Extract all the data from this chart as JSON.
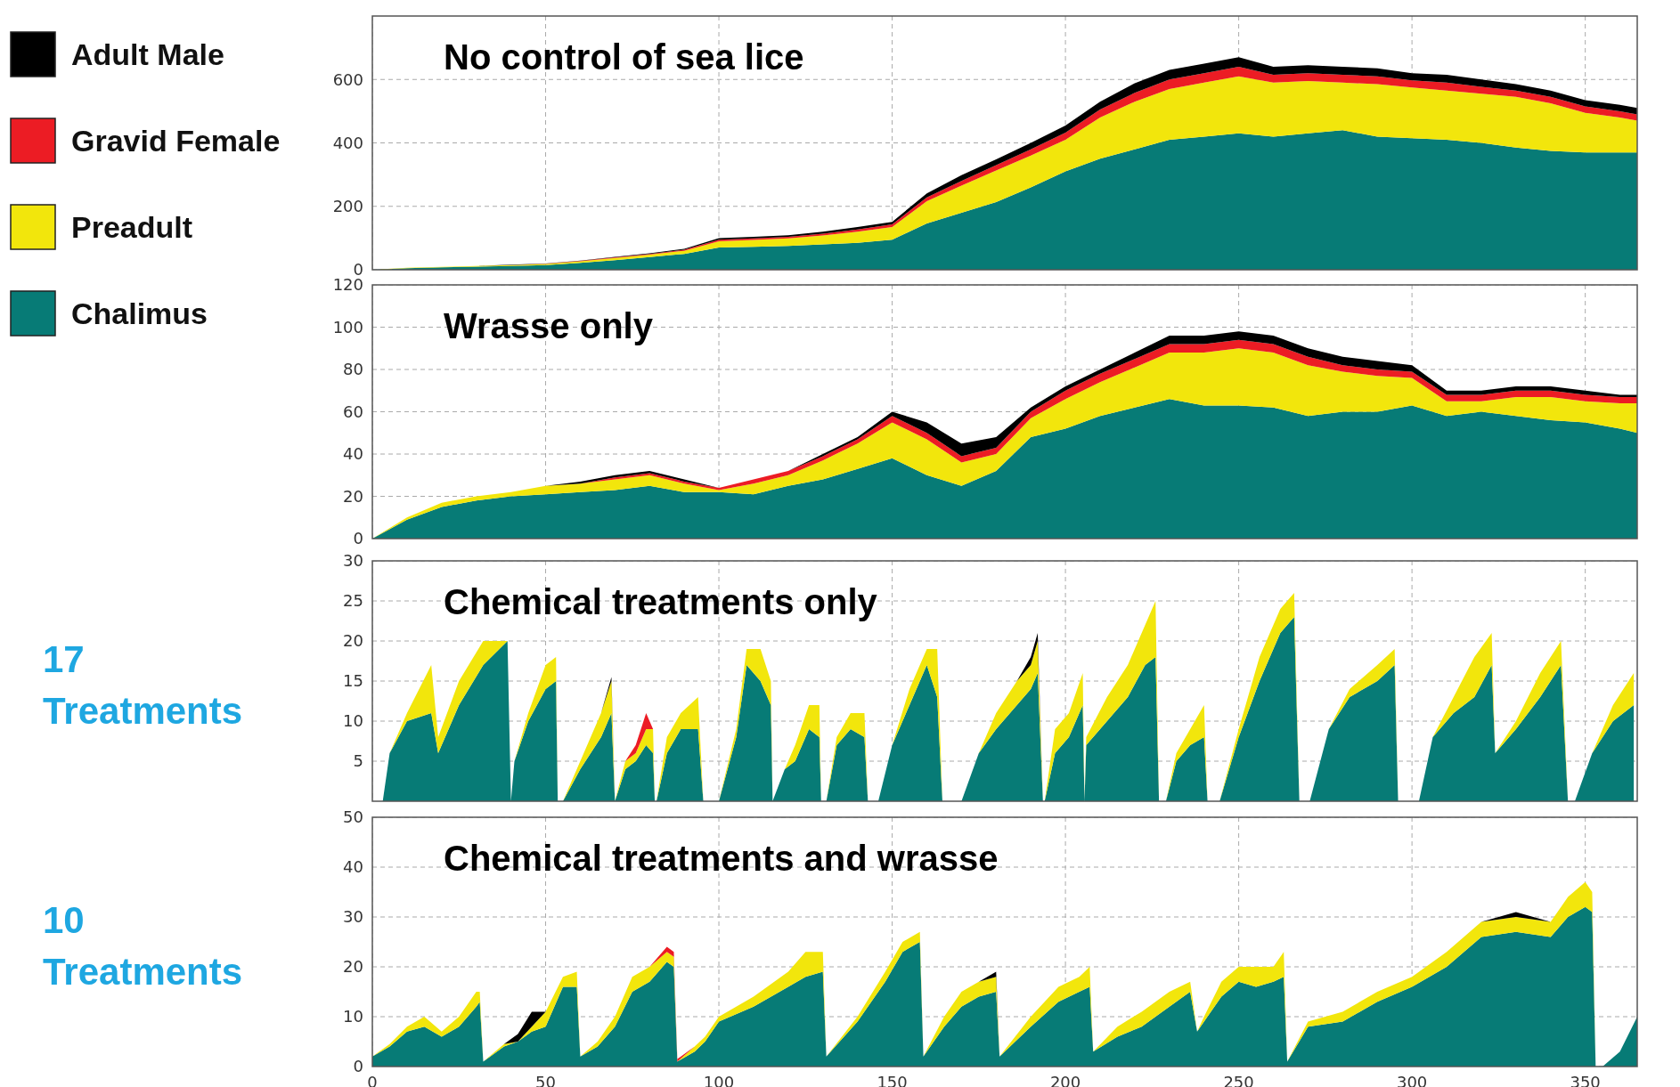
{
  "chart_data": [
    {
      "type": "area",
      "stacked": true,
      "title": "No control of sea lice",
      "legend": "left",
      "grid": true,
      "tick_labels": "y",
      "xlim": [
        0,
        365
      ],
      "xticks": [
        0,
        50,
        100,
        150,
        200,
        250,
        300,
        350
      ],
      "ylim": [
        0,
        800
      ],
      "yticks": [
        0,
        200,
        400,
        600
      ],
      "x": [
        0,
        10,
        20,
        30,
        40,
        50,
        60,
        70,
        80,
        90,
        100,
        110,
        120,
        130,
        140,
        150,
        160,
        170,
        180,
        190,
        200,
        210,
        220,
        230,
        240,
        250,
        260,
        270,
        280,
        290,
        300,
        310,
        320,
        330,
        340,
        350,
        360,
        365
      ],
      "series": [
        {
          "name": "Chalimus",
          "color": "#077b76",
          "values": [
            0,
            5,
            8,
            10,
            12,
            15,
            22,
            30,
            40,
            50,
            70,
            72,
            75,
            80,
            85,
            95,
            146,
            180,
            213,
            260,
            310,
            350,
            380,
            410,
            420,
            430,
            420,
            430,
            440,
            420,
            415,
            410,
            400,
            385,
            375,
            370,
            370,
            370
          ]
        },
        {
          "name": "Preadult",
          "color": "#f2e60c",
          "values": [
            0,
            1,
            1,
            2,
            3,
            3,
            5,
            7,
            8,
            10,
            20,
            22,
            24,
            28,
            35,
            40,
            70,
            85,
            100,
            100,
            100,
            130,
            150,
            160,
            170,
            180,
            170,
            165,
            150,
            165,
            160,
            155,
            155,
            160,
            150,
            125,
            110,
            100
          ]
        },
        {
          "name": "Gravid Female",
          "color": "#ec1c24",
          "values": [
            0,
            0,
            0,
            0,
            0,
            1,
            1,
            2,
            2,
            3,
            5,
            5,
            5,
            6,
            7,
            8,
            12,
            15,
            17,
            20,
            22,
            25,
            28,
            30,
            30,
            30,
            25,
            25,
            25,
            25,
            22,
            25,
            22,
            20,
            20,
            20,
            20,
            20
          ]
        },
        {
          "name": "Adult Male",
          "color": "#000000",
          "values": [
            0,
            0,
            0,
            0,
            1,
            1,
            1,
            2,
            2,
            3,
            5,
            5,
            5,
            6,
            8,
            8,
            13,
            18,
            18,
            20,
            23,
            25,
            30,
            30,
            30,
            30,
            25,
            25,
            25,
            25,
            23,
            25,
            23,
            20,
            20,
            20,
            20,
            20
          ]
        }
      ]
    },
    {
      "type": "area",
      "stacked": true,
      "title": "Wrasse only",
      "grid": true,
      "tick_labels": "y",
      "xlim": [
        0,
        365
      ],
      "xticks": [
        0,
        50,
        100,
        150,
        200,
        250,
        300,
        350
      ],
      "ylim": [
        0,
        120
      ],
      "yticks": [
        0,
        20,
        40,
        60,
        80,
        100,
        120
      ],
      "x": [
        0,
        10,
        20,
        30,
        40,
        50,
        60,
        70,
        80,
        90,
        100,
        110,
        120,
        130,
        140,
        150,
        160,
        170,
        180,
        190,
        200,
        210,
        220,
        230,
        240,
        250,
        260,
        270,
        280,
        290,
        300,
        310,
        320,
        330,
        340,
        350,
        360,
        365
      ],
      "series": [
        {
          "color": "#077b76",
          "values": [
            0,
            9,
            15,
            18,
            20,
            21,
            22,
            23,
            25,
            22,
            22,
            21,
            25,
            28,
            33,
            38,
            30,
            25,
            32,
            48,
            52,
            58,
            62,
            66,
            63,
            63,
            62,
            58,
            60,
            60,
            63,
            58,
            60,
            58,
            56,
            55,
            52,
            50
          ]
        },
        {
          "color": "#f2e60c",
          "values": [
            0,
            1,
            2,
            2,
            2,
            4,
            4,
            5,
            5,
            4,
            1,
            5,
            5,
            9,
            12,
            17,
            17,
            11,
            8,
            9,
            14,
            16,
            19,
            22,
            25,
            27,
            26,
            24,
            19,
            17,
            13,
            7,
            5,
            9,
            11,
            10,
            12,
            14
          ]
        },
        {
          "color": "#ec1c24",
          "values": [
            0,
            0,
            0,
            0,
            0,
            0,
            0,
            1,
            1,
            1,
            1,
            2,
            2,
            2,
            2,
            3,
            3,
            3,
            3,
            3,
            4,
            4,
            4,
            4,
            4,
            4,
            4,
            4,
            3,
            3,
            3,
            3,
            3,
            3,
            3,
            3,
            3,
            3
          ]
        },
        {
          "color": "#000000",
          "values": [
            0,
            0,
            0,
            0,
            0,
            0,
            1,
            1,
            1,
            1,
            0,
            0,
            0,
            1,
            1,
            2,
            5,
            6,
            5,
            2,
            2,
            2,
            3,
            4,
            4,
            4,
            4,
            4,
            4,
            4,
            3,
            2,
            2,
            2,
            2,
            2,
            1,
            1
          ]
        }
      ]
    },
    {
      "type": "area",
      "stacked": true,
      "title": "Chemical treatments only",
      "grid": true,
      "tick_labels": "y",
      "annotations": [
        "17 Treatments"
      ],
      "xlim": [
        0,
        365
      ],
      "xticks": [
        0,
        50,
        100,
        150,
        200,
        250,
        300,
        350
      ],
      "ylim": [
        0,
        30
      ],
      "yticks": [
        5,
        10,
        15,
        20,
        25,
        30
      ],
      "x": [
        3,
        5,
        10,
        17,
        19,
        25,
        32,
        39,
        40,
        41,
        45,
        50,
        53,
        53.5,
        55,
        60,
        66,
        69,
        70,
        73,
        76,
        79,
        81,
        81.5,
        82,
        85,
        89,
        94,
        95.5,
        100,
        105,
        108,
        112,
        115,
        115.5,
        119,
        122,
        126,
        129,
        129.5,
        131,
        134,
        138,
        142,
        143,
        146,
        150,
        155,
        160,
        163,
        164.5,
        170,
        175,
        180,
        186,
        190,
        192,
        193.5,
        194,
        197,
        201,
        205,
        205.5,
        206,
        212,
        218,
        223,
        226,
        227,
        229,
        232,
        236,
        240,
        241,
        244.5,
        250,
        256,
        262,
        266,
        267.5,
        270.5,
        276,
        282,
        290,
        295,
        296,
        302,
        306,
        312,
        318,
        323,
        324,
        330,
        337,
        343,
        345,
        347,
        352,
        358,
        364
      ],
      "series": [
        {
          "color": "#077b76",
          "values": [
            0,
            6,
            10,
            11,
            6,
            12,
            17,
            20,
            0,
            5,
            10,
            14,
            15,
            0,
            0,
            4,
            8,
            11,
            0,
            4,
            5,
            7,
            6,
            0,
            0,
            6,
            9,
            9,
            0,
            0,
            8,
            17,
            15,
            12,
            0,
            4,
            5,
            9,
            8,
            0,
            0,
            7,
            9,
            8,
            0,
            0,
            7,
            12,
            17,
            13,
            0,
            0,
            6,
            9,
            12,
            14,
            16,
            0,
            0,
            6,
            8,
            12,
            0,
            7,
            10,
            13,
            17,
            18,
            0,
            0,
            5,
            7,
            8,
            0,
            0,
            8,
            15,
            21,
            23,
            0,
            0,
            9,
            13,
            15,
            17,
            0,
            0,
            8,
            11,
            13,
            17,
            6,
            9,
            13,
            17,
            0,
            0,
            6,
            10,
            12
          ]
        },
        {
          "color": "#f2e60c",
          "values": [
            0,
            0,
            1,
            6,
            2,
            3,
            3,
            0,
            0,
            0,
            1,
            3,
            3,
            0,
            0,
            1,
            3,
            4,
            0,
            1,
            1,
            2,
            3,
            0,
            0,
            2,
            2,
            4,
            0,
            0,
            1,
            2,
            4,
            3,
            0,
            0,
            2,
            3,
            4,
            0,
            0,
            1,
            2,
            3,
            0,
            0,
            0,
            2,
            2,
            6,
            0,
            0,
            0,
            2,
            3,
            3,
            4,
            0,
            0,
            3,
            3,
            4,
            0,
            1,
            3,
            4,
            5,
            7,
            0,
            0,
            1,
            2,
            4,
            0,
            0,
            1,
            3,
            3,
            3,
            0,
            0,
            0,
            1,
            2,
            2,
            0,
            0,
            0,
            2,
            5,
            4,
            0,
            1,
            3,
            3,
            0,
            0,
            0,
            2,
            4
          ]
        },
        {
          "color": "#ec1c24",
          "values": [
            null,
            null,
            null,
            null,
            null,
            null,
            null,
            null,
            null,
            null,
            null,
            null,
            null,
            null,
            null,
            null,
            null,
            null,
            null,
            0,
            1,
            2,
            0,
            null,
            null,
            null,
            null,
            null,
            null,
            null,
            null,
            null,
            null,
            null,
            null,
            null,
            null,
            null,
            null,
            null,
            null,
            null,
            null,
            null,
            null,
            null,
            null,
            null,
            null,
            null,
            null,
            null,
            null,
            null,
            null,
            null,
            null,
            null,
            null,
            null,
            null,
            null,
            null,
            null,
            null,
            null,
            null,
            null,
            null,
            null,
            null,
            null,
            null,
            null,
            null,
            null,
            null,
            null,
            null,
            null,
            null,
            null,
            null,
            null,
            null,
            null,
            null,
            null,
            null,
            null,
            null,
            null,
            null,
            null,
            null,
            null,
            null,
            null,
            null,
            null
          ]
        },
        {
          "color": "#000000",
          "values": [
            null,
            null,
            null,
            null,
            null,
            null,
            null,
            null,
            null,
            null,
            null,
            null,
            null,
            null,
            null,
            null,
            0,
            0.5,
            0,
            null,
            null,
            null,
            null,
            null,
            null,
            null,
            null,
            null,
            null,
            null,
            null,
            null,
            null,
            null,
            null,
            null,
            null,
            null,
            null,
            null,
            null,
            null,
            null,
            null,
            null,
            null,
            null,
            null,
            null,
            null,
            null,
            null,
            null,
            null,
            0,
            1,
            1,
            0,
            null,
            null,
            null,
            null,
            null,
            null,
            null,
            null,
            null,
            null,
            null,
            null,
            null,
            null,
            null,
            null,
            null,
            null,
            null,
            null,
            null,
            null,
            null,
            null,
            null,
            null,
            null,
            null,
            null,
            null,
            null,
            null,
            null,
            null,
            null,
            null,
            null,
            null,
            null,
            null,
            null,
            null
          ]
        }
      ]
    },
    {
      "type": "area",
      "stacked": true,
      "title": "Chemical treatments and wrasse",
      "grid": true,
      "annotations": [
        "10 Treatments"
      ],
      "xlim": [
        0,
        365
      ],
      "xticks": [
        0,
        50,
        100,
        150,
        200,
        250,
        300,
        350
      ],
      "ylim": [
        0,
        50
      ],
      "yticks": [
        0,
        10,
        20,
        30,
        40,
        50
      ],
      "x": [
        0,
        5,
        10,
        15,
        20,
        25,
        30,
        31,
        32,
        38,
        42,
        46,
        50,
        55,
        59,
        60,
        65,
        70,
        75,
        80,
        85,
        87,
        88,
        93,
        96,
        100,
        110,
        120,
        125,
        130,
        131,
        140,
        148,
        153,
        158,
        159,
        165,
        170,
        175,
        180,
        181,
        190,
        198,
        204,
        207,
        208,
        215,
        222,
        230,
        236,
        238,
        240,
        245,
        250,
        255,
        260,
        263,
        264,
        270,
        280,
        290,
        300,
        310,
        320,
        330,
        340,
        345,
        350,
        352,
        353,
        355,
        360,
        365
      ],
      "series": [
        {
          "color": "#077b76",
          "values": [
            2,
            4,
            7,
            8,
            6,
            8,
            12,
            13,
            1,
            4,
            5,
            7,
            8,
            16,
            16,
            2,
            4,
            8,
            15,
            17,
            21,
            20,
            1,
            3,
            5,
            9,
            12,
            16,
            18,
            19,
            2,
            9,
            17,
            23,
            25,
            2,
            8,
            12,
            14,
            15,
            2,
            8,
            13,
            15,
            16,
            3,
            6,
            8,
            12,
            15,
            7,
            9,
            14,
            17,
            16,
            17,
            18,
            1,
            8,
            9,
            13,
            16,
            20,
            26,
            27,
            26,
            30,
            32,
            31,
            0,
            0,
            3,
            10
          ]
        },
        {
          "color": "#f2e60c",
          "values": [
            0,
            0.5,
            1,
            2,
            1,
            2,
            3,
            2,
            0,
            0.5,
            0,
            1,
            3,
            2,
            3,
            0,
            1,
            2,
            3,
            3,
            2,
            2,
            0,
            1,
            1,
            1,
            2,
            3,
            5,
            4,
            0,
            1,
            2,
            2,
            2,
            0,
            2,
            3,
            3,
            3,
            0,
            2,
            3,
            3,
            4,
            0,
            2,
            3,
            3,
            2,
            0,
            1,
            3,
            3,
            4,
            3,
            5,
            0,
            1,
            2,
            2,
            2,
            3,
            3,
            3,
            3,
            4,
            5,
            4,
            0,
            0,
            0,
            0
          ]
        },
        {
          "color": "#ec1c24",
          "values": [
            null,
            null,
            null,
            null,
            null,
            null,
            null,
            null,
            null,
            null,
            null,
            null,
            null,
            null,
            null,
            null,
            null,
            null,
            null,
            0,
            1,
            1,
            0.5,
            0,
            null,
            null,
            null,
            null,
            null,
            null,
            null,
            null,
            null,
            null,
            null,
            null,
            null,
            null,
            null,
            null,
            null,
            null,
            null,
            null,
            null,
            null,
            null,
            null,
            null,
            null,
            null,
            null,
            null,
            null,
            null,
            null,
            null,
            null,
            null,
            null,
            null,
            null,
            null,
            null,
            null,
            null,
            null,
            null,
            null,
            null,
            null,
            null,
            null
          ]
        },
        {
          "color": "#000000",
          "values": [
            null,
            null,
            null,
            null,
            null,
            null,
            null,
            null,
            null,
            0,
            1.5,
            3,
            0,
            null,
            null,
            null,
            null,
            null,
            null,
            null,
            null,
            null,
            null,
            null,
            null,
            null,
            null,
            null,
            null,
            null,
            null,
            null,
            null,
            null,
            null,
            null,
            null,
            null,
            0,
            1,
            0,
            null,
            null,
            null,
            null,
            null,
            null,
            null,
            null,
            null,
            null,
            null,
            null,
            null,
            null,
            null,
            null,
            null,
            null,
            null,
            null,
            null,
            null,
            0,
            1,
            0,
            null,
            null,
            null,
            null,
            null,
            null,
            null
          ]
        }
      ]
    }
  ]
}
